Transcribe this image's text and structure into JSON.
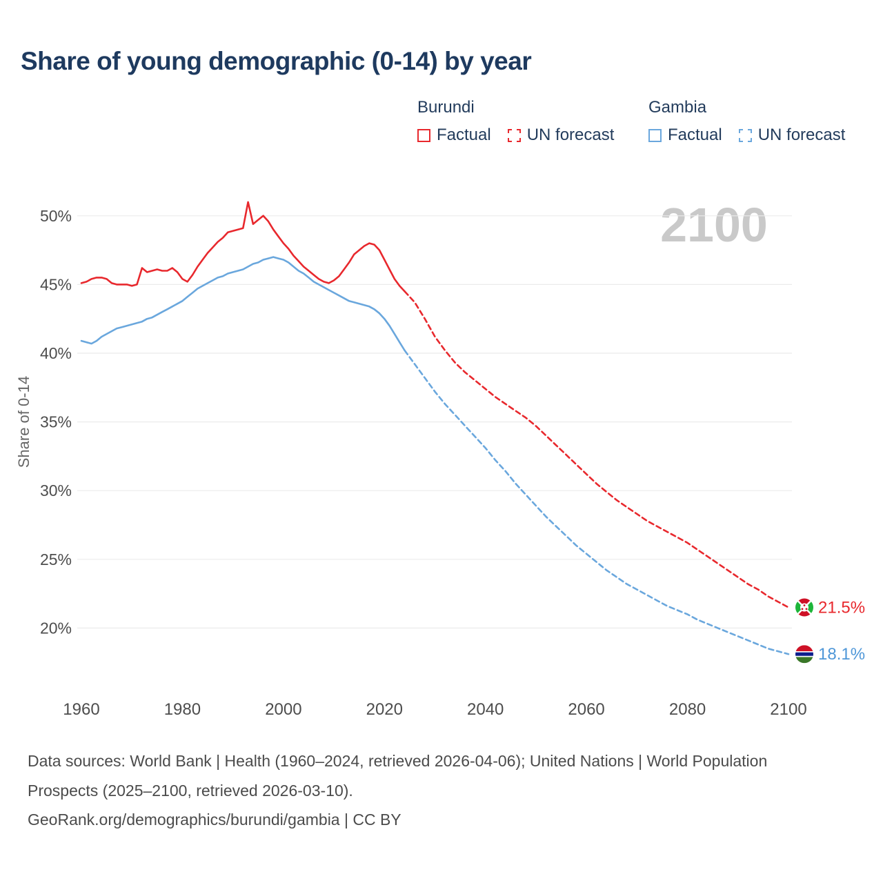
{
  "title": "Share of young demographic (0-14) by year",
  "watermark": "2100",
  "legend": {
    "groups": [
      {
        "name": "Burundi",
        "factual_label": "Factual",
        "forecast_label": "UN forecast"
      },
      {
        "name": "Gambia",
        "factual_label": "Factual",
        "forecast_label": "UN forecast"
      }
    ]
  },
  "end_labels": [
    {
      "series": "Burundi",
      "label": "21.5%",
      "value": 21.5,
      "color": "#e8282d",
      "flag": "burundi"
    },
    {
      "series": "Gambia",
      "label": "18.1%",
      "value": 18.1,
      "color": "#4f97d8",
      "flag": "gambia"
    }
  ],
  "footer": {
    "sources": "Data sources: World Bank | Health (1960–2024, retrieved 2026-04-06); United Nations | World Population Prospects (2025–2100, retrieved 2026-03-10).",
    "attribution": "GeoRank.org/demographics/burundi/gambia | CC BY"
  },
  "chart_data": {
    "type": "line",
    "title": "Share of young demographic (0-14) by year",
    "xlabel": "",
    "ylabel": "Share of 0-14",
    "x_ticks": [
      1960,
      1980,
      2000,
      2020,
      2040,
      2060,
      2080,
      2100
    ],
    "y_ticks": [
      20,
      25,
      30,
      35,
      40,
      45,
      50
    ],
    "xlim": [
      1957,
      2113
    ],
    "ylim": [
      17,
      52.5
    ],
    "grid": true,
    "legend_position": "top-right",
    "series": [
      {
        "name": "Burundi Factual",
        "style": "solid",
        "color": "#e8282d",
        "x": [
          1960,
          1961,
          1962,
          1963,
          1964,
          1965,
          1966,
          1967,
          1968,
          1969,
          1970,
          1971,
          1972,
          1973,
          1974,
          1975,
          1976,
          1977,
          1978,
          1979,
          1980,
          1981,
          1982,
          1983,
          1984,
          1985,
          1986,
          1987,
          1988,
          1989,
          1990,
          1991,
          1992,
          1993,
          1994,
          1995,
          1996,
          1997,
          1998,
          1999,
          2000,
          2001,
          2002,
          2003,
          2004,
          2005,
          2006,
          2007,
          2008,
          2009,
          2010,
          2011,
          2012,
          2013,
          2014,
          2015,
          2016,
          2017,
          2018,
          2019,
          2020,
          2021,
          2022,
          2023,
          2024
        ],
        "y": [
          45.1,
          45.2,
          45.4,
          45.5,
          45.5,
          45.4,
          45.1,
          45.0,
          45.0,
          45.0,
          44.9,
          45.0,
          46.2,
          45.9,
          46.0,
          46.1,
          46.0,
          46.0,
          46.2,
          45.9,
          45.4,
          45.2,
          45.7,
          46.3,
          46.8,
          47.3,
          47.7,
          48.1,
          48.4,
          48.8,
          48.9,
          49.0,
          49.1,
          51.0,
          49.4,
          49.7,
          50.0,
          49.6,
          49.0,
          48.5,
          48.0,
          47.6,
          47.1,
          46.7,
          46.3,
          46.0,
          45.7,
          45.4,
          45.2,
          45.1,
          45.3,
          45.6,
          46.1,
          46.6,
          47.2,
          47.5,
          47.8,
          48.0,
          47.9,
          47.5,
          46.8,
          46.1,
          45.4,
          44.9,
          44.5
        ]
      },
      {
        "name": "Burundi UN forecast",
        "style": "dashed",
        "color": "#e8282d",
        "x": [
          2024,
          2026,
          2028,
          2030,
          2032,
          2034,
          2036,
          2038,
          2040,
          2042,
          2044,
          2046,
          2048,
          2050,
          2052,
          2054,
          2056,
          2058,
          2060,
          2062,
          2064,
          2066,
          2068,
          2070,
          2072,
          2074,
          2076,
          2078,
          2080,
          2082,
          2084,
          2086,
          2088,
          2090,
          2092,
          2094,
          2096,
          2098,
          2100
        ],
        "y": [
          44.5,
          43.7,
          42.5,
          41.2,
          40.2,
          39.3,
          38.6,
          38.0,
          37.4,
          36.8,
          36.3,
          35.8,
          35.3,
          34.7,
          34.0,
          33.3,
          32.6,
          31.9,
          31.2,
          30.5,
          29.9,
          29.3,
          28.8,
          28.3,
          27.8,
          27.4,
          27.0,
          26.6,
          26.2,
          25.7,
          25.2,
          24.7,
          24.2,
          23.7,
          23.2,
          22.8,
          22.3,
          21.9,
          21.5
        ]
      },
      {
        "name": "Gambia Factual",
        "style": "solid",
        "color": "#6aa7dd",
        "x": [
          1960,
          1961,
          1962,
          1963,
          1964,
          1965,
          1966,
          1967,
          1968,
          1969,
          1970,
          1971,
          1972,
          1973,
          1974,
          1975,
          1976,
          1977,
          1978,
          1979,
          1980,
          1981,
          1982,
          1983,
          1984,
          1985,
          1986,
          1987,
          1988,
          1989,
          1990,
          1991,
          1992,
          1993,
          1994,
          1995,
          1996,
          1997,
          1998,
          1999,
          2000,
          2001,
          2002,
          2003,
          2004,
          2005,
          2006,
          2007,
          2008,
          2009,
          2010,
          2011,
          2012,
          2013,
          2014,
          2015,
          2016,
          2017,
          2018,
          2019,
          2020,
          2021,
          2022,
          2023,
          2024
        ],
        "y": [
          40.9,
          40.8,
          40.7,
          40.9,
          41.2,
          41.4,
          41.6,
          41.8,
          41.9,
          42.0,
          42.1,
          42.2,
          42.3,
          42.5,
          42.6,
          42.8,
          43.0,
          43.2,
          43.4,
          43.6,
          43.8,
          44.1,
          44.4,
          44.7,
          44.9,
          45.1,
          45.3,
          45.5,
          45.6,
          45.8,
          45.9,
          46.0,
          46.1,
          46.3,
          46.5,
          46.6,
          46.8,
          46.9,
          47.0,
          46.9,
          46.8,
          46.6,
          46.3,
          46.0,
          45.8,
          45.5,
          45.2,
          45.0,
          44.8,
          44.6,
          44.4,
          44.2,
          44.0,
          43.8,
          43.7,
          43.6,
          43.5,
          43.4,
          43.2,
          42.9,
          42.5,
          42.0,
          41.4,
          40.8,
          40.2
        ]
      },
      {
        "name": "Gambia UN forecast",
        "style": "dashed",
        "color": "#6aa7dd",
        "x": [
          2024,
          2026,
          2028,
          2030,
          2032,
          2034,
          2036,
          2038,
          2040,
          2042,
          2044,
          2046,
          2048,
          2050,
          2052,
          2054,
          2056,
          2058,
          2060,
          2062,
          2064,
          2066,
          2068,
          2070,
          2072,
          2074,
          2076,
          2078,
          2080,
          2082,
          2084,
          2086,
          2088,
          2090,
          2092,
          2094,
          2096,
          2098,
          2100
        ],
        "y": [
          40.2,
          39.2,
          38.2,
          37.2,
          36.3,
          35.5,
          34.7,
          33.9,
          33.1,
          32.2,
          31.4,
          30.5,
          29.7,
          28.9,
          28.1,
          27.4,
          26.7,
          26.0,
          25.4,
          24.8,
          24.2,
          23.7,
          23.2,
          22.8,
          22.4,
          22.0,
          21.6,
          21.3,
          21.0,
          20.6,
          20.3,
          20.0,
          19.7,
          19.4,
          19.1,
          18.8,
          18.5,
          18.3,
          18.1
        ]
      }
    ]
  }
}
